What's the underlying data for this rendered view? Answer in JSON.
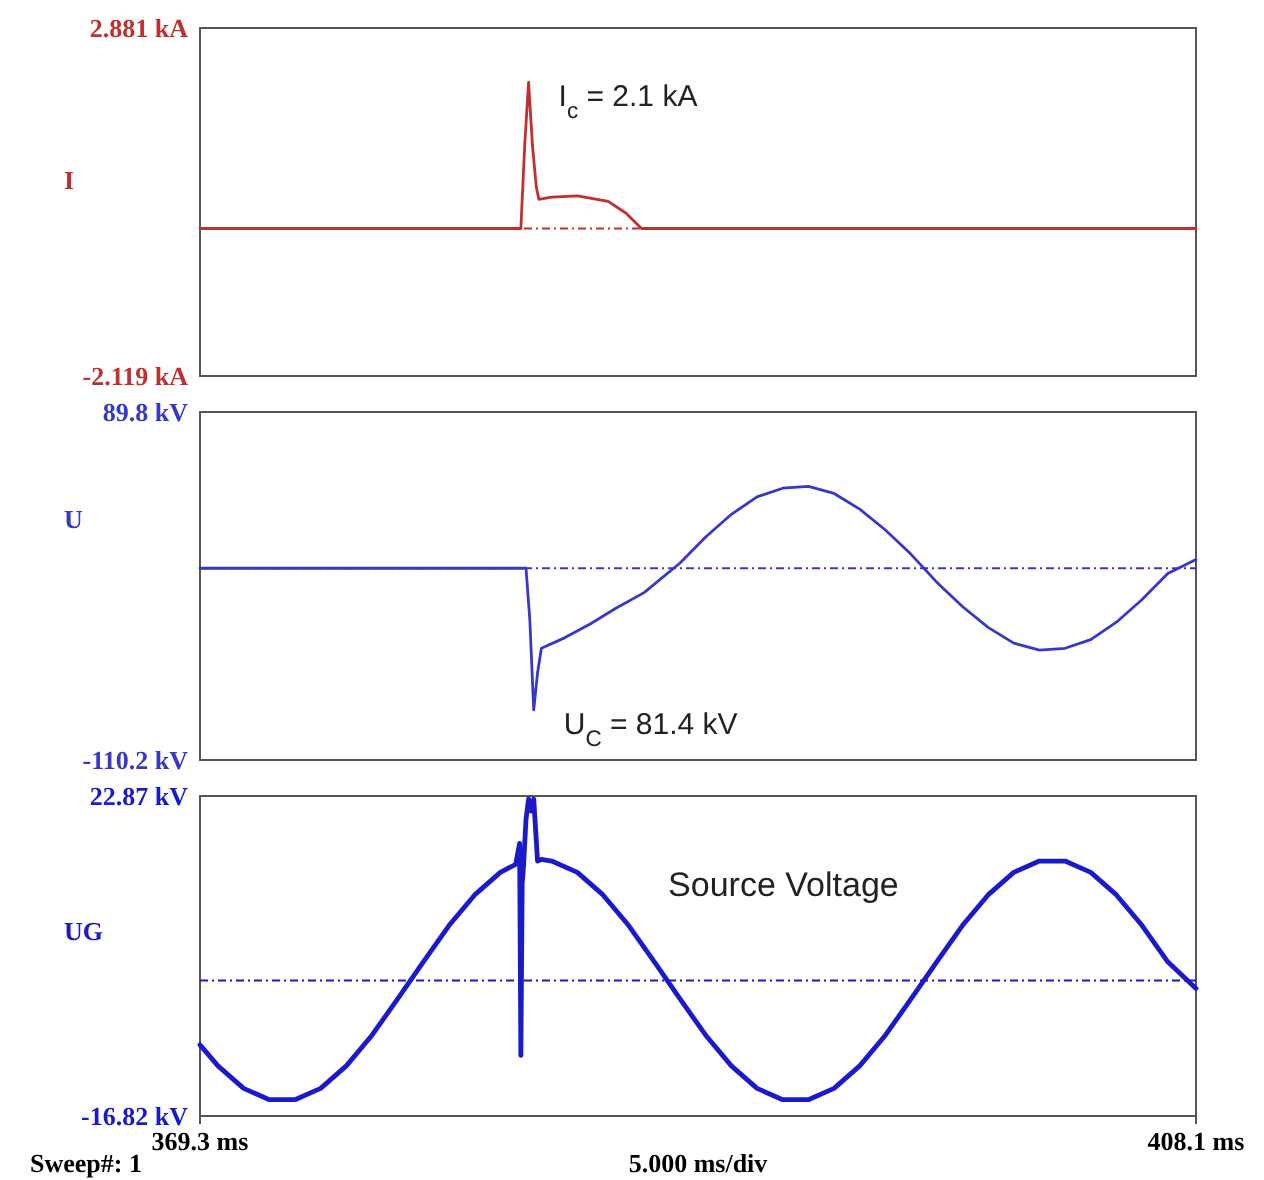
{
  "chart_data": [
    {
      "type": "line",
      "ylabel": "I",
      "xlim": [
        369.3,
        408.1
      ],
      "ylim": [
        -2.119,
        2.881
      ],
      "yticks": [
        {
          "value": 2.881,
          "label": "2.881 kA"
        },
        {
          "value": -2.119,
          "label": "-2.119 kA"
        }
      ],
      "tick_labels": "y",
      "marker": "none",
      "line_style": "solid",
      "ref_lines": [
        {
          "axis": "y",
          "value": 0,
          "line_style": "dotted",
          "color": "#c03030"
        }
      ],
      "annotations": [
        {
          "text": "I$_{c}$ = 2.1 kA",
          "x": 382.1,
          "y": 2.1
        }
      ],
      "series": [
        {
          "color": "#c03030",
          "x": [
            369.3,
            381.8,
            381.95,
            382.1,
            382.25,
            382.4,
            382.5,
            383,
            384,
            385.2,
            385.9,
            386.5,
            408.1
          ],
          "values": [
            0,
            0,
            1.2,
            2.1,
            1.2,
            0.6,
            0.42,
            0.45,
            0.47,
            0.39,
            0.22,
            0,
            0
          ]
        }
      ]
    },
    {
      "type": "line",
      "ylabel": "U",
      "xlim": [
        369.3,
        408.1
      ],
      "ylim": [
        -110.2,
        89.8
      ],
      "yticks": [
        {
          "value": 89.8,
          "label": "89.8 kV"
        },
        {
          "value": -110.2,
          "label": "-110.2 kV"
        }
      ],
      "tick_labels": "y",
      "marker": "none",
      "line_style": "solid",
      "ref_lines": [
        {
          "axis": "y",
          "value": 0,
          "line_style": "dotted",
          "color": "#3838c8"
        }
      ],
      "annotations": [
        {
          "text": "U$_{C}$ = 81.4 kV",
          "x": 382.3,
          "y": -81.4
        }
      ],
      "series": [
        {
          "color": "#3838c8",
          "x": [
            369.3,
            382.0,
            382.15,
            382.3,
            382.45,
            382.6,
            383.5,
            384.5,
            385.5,
            386.6,
            388,
            389,
            390,
            391,
            392,
            393,
            394,
            395,
            396,
            397,
            398,
            399,
            400,
            401,
            402,
            403,
            404,
            405,
            406,
            407,
            408.1
          ],
          "values": [
            0,
            0,
            -30,
            -81.4,
            -60,
            -46,
            -40,
            -32,
            -23,
            -14,
            3,
            18,
            31,
            41,
            46,
            47,
            43,
            34,
            22,
            8,
            -8,
            -22,
            -34,
            -43,
            -47,
            -46,
            -41,
            -31,
            -18,
            -3,
            5
          ]
        }
      ]
    },
    {
      "type": "line",
      "ylabel": "UG",
      "xlim": [
        369.3,
        408.1
      ],
      "xticks": [
        {
          "value": 369.3,
          "label": "369.3 ms"
        },
        {
          "value": 408.1,
          "label": "408.1 ms"
        }
      ],
      "ylim": [
        -16.82,
        22.87
      ],
      "yticks": [
        {
          "value": 22.87,
          "label": "22.87 kV"
        },
        {
          "value": -16.82,
          "label": "-16.82 kV"
        }
      ],
      "marker": "none",
      "line_style": "solid",
      "ref_lines": [
        {
          "axis": "y",
          "value": 0,
          "line_style": "dotted",
          "color": "#1a1acc"
        }
      ],
      "annotations": [
        "Sweep#: 1",
        "5.000 ms/div"
      ],
      "series": [
        {
          "name": "Source Voltage",
          "color": "#1a1acc",
          "x": [
            369.3,
            370,
            371,
            372,
            373,
            374,
            375,
            376,
            377,
            378,
            379,
            380,
            381,
            381.6,
            381.75,
            381.8,
            381.85,
            381.9,
            382.0,
            382.1,
            382.2,
            382.3,
            382.45,
            382.6,
            383,
            384,
            385,
            386,
            387,
            388,
            389,
            390,
            391,
            392,
            393,
            394,
            395,
            396,
            397,
            398,
            399,
            400,
            401,
            402,
            403,
            404,
            405,
            406,
            407,
            408.1
          ],
          "values": [
            -8,
            -10.6,
            -13.4,
            -14.8,
            -14.8,
            -13.4,
            -10.6,
            -6.8,
            -2.3,
            2.3,
            6.8,
            10.6,
            13.4,
            14.4,
            17,
            -9.3,
            12,
            14,
            20,
            22.5,
            21,
            22.5,
            14.8,
            15,
            14.8,
            13.4,
            10.6,
            6.8,
            2.3,
            -2.3,
            -6.8,
            -10.6,
            -13.4,
            -14.8,
            -14.8,
            -13.4,
            -10.6,
            -6.8,
            -2.3,
            2.3,
            6.8,
            10.6,
            13.4,
            14.8,
            14.8,
            13.4,
            10.6,
            6.8,
            2.3,
            -1
          ]
        }
      ]
    }
  ]
}
